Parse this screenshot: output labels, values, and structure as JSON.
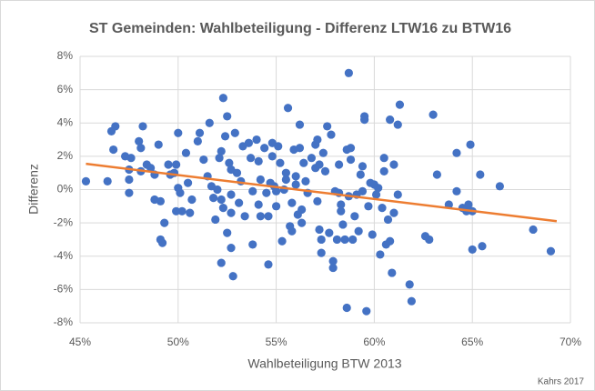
{
  "chart_data": {
    "type": "scatter",
    "title": "ST Gemeinden: Wahlbeteiligung - Differenz LTW16 zu BTW16",
    "x_label": "Wahlbeteiligung BTW 2013",
    "y_label": "Differenz",
    "source": "Kahrs 2017",
    "color": "#4472c4",
    "grid": true,
    "xlim": [
      45,
      70
    ],
    "ylim": [
      -8,
      8
    ],
    "xticks": [
      {
        "value": 45,
        "label": "45%"
      },
      {
        "value": 50,
        "label": "50%"
      },
      {
        "value": 55,
        "label": "55%"
      },
      {
        "value": 60,
        "label": "60%"
      },
      {
        "value": 65,
        "label": "65%"
      },
      {
        "value": 70,
        "label": "70%"
      }
    ],
    "yticks": [
      {
        "value": -8,
        "label": "-8%"
      },
      {
        "value": -6,
        "label": "-6%"
      },
      {
        "value": -4,
        "label": "-4%"
      },
      {
        "value": -2,
        "label": "-2%"
      },
      {
        "value": 0,
        "label": "0%"
      },
      {
        "value": 2,
        "label": "2%"
      },
      {
        "value": 4,
        "label": "4%"
      },
      {
        "value": 6,
        "label": "6%"
      },
      {
        "value": 8,
        "label": "8%"
      }
    ],
    "x": [
      45.3,
      46.4,
      46.6,
      46.8,
      46.7,
      47.3,
      47.6,
      47.5,
      47.5,
      47.5,
      48.0,
      48.1,
      48.2,
      48.1,
      48.4,
      48.6,
      48.8,
      48.8,
      49.0,
      49.1,
      49.1,
      49.2,
      49.3,
      49.5,
      49.6,
      49.8,
      49.9,
      50.0,
      50.0,
      50.1,
      49.9,
      50.2,
      50.4,
      50.5,
      50.6,
      50.7,
      51.1,
      51.0,
      51.3,
      51.5,
      51.6,
      51.7,
      51.8,
      51.9,
      52.0,
      52.1,
      52.2,
      52.2,
      52.3,
      52.2,
      52.3,
      52.4,
      52.5,
      52.5,
      52.6,
      52.7,
      52.7,
      52.7,
      52.7,
      52.8,
      52.9,
      53.0,
      53.1,
      53.2,
      53.3,
      53.4,
      53.6,
      53.7,
      53.8,
      53.8,
      54.0,
      54.1,
      54.1,
      54.2,
      54.2,
      54.4,
      54.5,
      54.6,
      54.6,
      54.7,
      54.8,
      54.8,
      54.9,
      55.0,
      55.0,
      55.1,
      55.2,
      55.3,
      55.4,
      55.5,
      55.5,
      55.6,
      55.7,
      55.8,
      55.8,
      55.9,
      56.0,
      56.0,
      56.1,
      56.2,
      56.2,
      56.3,
      56.3,
      56.4,
      56.5,
      56.6,
      56.8,
      57.0,
      57.0,
      57.1,
      57.1,
      57.2,
      57.2,
      57.3,
      57.3,
      57.4,
      57.5,
      57.6,
      57.7,
      57.8,
      57.9,
      57.9,
      58.0,
      58.1,
      58.2,
      58.2,
      58.3,
      58.3,
      58.4,
      58.5,
      58.6,
      58.6,
      58.7,
      58.7,
      58.8,
      58.8,
      58.9,
      59.0,
      59.1,
      59.2,
      59.3,
      59.4,
      59.4,
      59.5,
      59.5,
      59.6,
      59.7,
      59.8,
      59.9,
      60.0,
      60.1,
      60.2,
      60.3,
      60.4,
      60.5,
      60.5,
      60.6,
      60.7,
      60.8,
      60.8,
      60.9,
      61.0,
      61.0,
      61.2,
      61.2,
      61.3,
      61.8,
      61.9,
      62.6,
      62.8,
      63.0,
      63.2,
      63.8,
      64.2,
      64.2,
      64.5,
      64.7,
      64.8,
      64.9,
      65.0,
      65.0,
      65.4,
      65.5,
      66.4,
      68.1,
      69.0
    ],
    "values": [
      0.5,
      0.5,
      3.5,
      3.8,
      2.4,
      2.0,
      1.9,
      1.2,
      0.6,
      -0.2,
      2.9,
      2.5,
      3.8,
      1.1,
      1.5,
      1.3,
      0.9,
      -0.6,
      2.7,
      -0.7,
      -3.0,
      -3.2,
      -2.0,
      1.5,
      0.9,
      1.0,
      1.5,
      3.4,
      0.1,
      -0.2,
      -1.3,
      -1.3,
      2.2,
      0.4,
      -1.4,
      -0.6,
      3.4,
      2.9,
      1.8,
      0.8,
      4.0,
      0.2,
      -0.5,
      -1.8,
      0.0,
      1.9,
      2.3,
      -0.6,
      -1.1,
      -4.4,
      5.5,
      3.2,
      4.4,
      -2.6,
      1.6,
      1.2,
      -0.3,
      -1.4,
      -3.5,
      -5.2,
      3.4,
      1.0,
      -0.8,
      0.5,
      2.6,
      -1.6,
      2.8,
      1.9,
      -0.1,
      -3.3,
      3.0,
      1.7,
      -0.9,
      -1.6,
      0.6,
      2.5,
      -0.2,
      -4.5,
      -1.6,
      0.4,
      2.0,
      2.8,
      0.2,
      -1.0,
      -0.1,
      2.6,
      1.6,
      -3.1,
      0.0,
      1.0,
      0.6,
      4.9,
      -2.2,
      -0.8,
      -2.5,
      2.4,
      0.3,
      0.8,
      -1.5,
      3.9,
      2.5,
      -2.0,
      -1.2,
      1.6,
      0.5,
      -0.2,
      1.9,
      1.3,
      2.7,
      -0.7,
      3.0,
      -2.4,
      1.5,
      -3.0,
      -3.8,
      2.2,
      1.1,
      3.8,
      -2.6,
      3.3,
      -4.3,
      -4.7,
      -0.1,
      -3.0,
      -0.2,
      1.5,
      -1.3,
      -0.9,
      -2.1,
      -3.0,
      2.4,
      -7.1,
      7.0,
      -0.4,
      1.8,
      2.5,
      -3.0,
      -1.6,
      -0.3,
      -2.5,
      0.9,
      -0.1,
      1.4,
      4.4,
      4.2,
      -7.3,
      -1.0,
      0.4,
      -2.7,
      0.3,
      -0.3,
      0.1,
      -3.9,
      -1.1,
      1.9,
      1.1,
      -3.3,
      -1.8,
      4.2,
      -3.1,
      -5.0,
      -1.4,
      1.5,
      3.9,
      -0.3,
      5.1,
      -5.7,
      -6.7,
      -2.8,
      -3.0,
      4.5,
      0.9,
      -0.9,
      -0.1,
      2.2,
      -1.1,
      -1.3,
      -0.9,
      2.7,
      -3.6,
      -1.3,
      0.9,
      -3.4,
      0.2,
      -2.4,
      -3.7
    ],
    "trendline": {
      "color": "#ed7d31",
      "x": [
        45.3,
        69.3
      ],
      "y": [
        1.55,
        -1.9
      ]
    }
  }
}
